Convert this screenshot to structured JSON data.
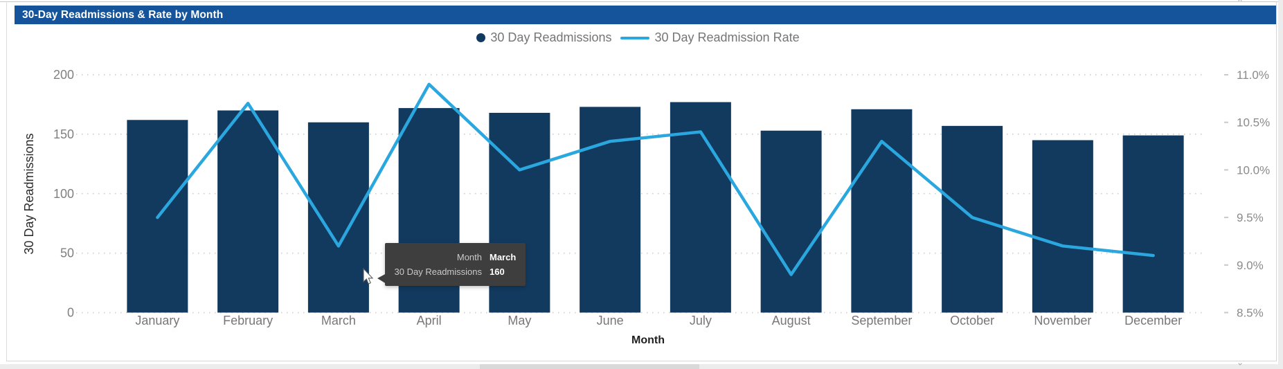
{
  "title_bar": {
    "title": "30-Day Readmissions & Rate by Month",
    "bg_color": "#15549A"
  },
  "chart_data": {
    "type": "combo-bar-line",
    "categories": [
      "January",
      "February",
      "March",
      "April",
      "May",
      "June",
      "July",
      "August",
      "September",
      "October",
      "November",
      "December"
    ],
    "series": [
      {
        "name": "30 Day Readmissions",
        "type": "bar",
        "axis": "left",
        "color": "#123A5F",
        "values": [
          162,
          170,
          160,
          172,
          168,
          173,
          177,
          153,
          171,
          157,
          145,
          149
        ]
      },
      {
        "name": "30 Day Readmission Rate",
        "type": "line",
        "axis": "right",
        "color": "#2BA7E0",
        "values": [
          9.5,
          10.7,
          9.2,
          10.9,
          10.0,
          10.3,
          10.4,
          8.9,
          10.3,
          9.5,
          9.2,
          9.1
        ]
      }
    ],
    "left_axis": {
      "title": "30 Day Readmissions",
      "min": 0,
      "max": 200,
      "ticks": [
        0,
        50,
        100,
        150,
        200
      ]
    },
    "right_axis": {
      "min": 8.5,
      "max": 11.0,
      "tick_labels": [
        "8.5%",
        "9.0%",
        "9.5%",
        "10.0%",
        "10.5%",
        "11.0%"
      ]
    },
    "x_axis": {
      "title": "Month"
    },
    "grid": "dotted-horizontal",
    "legend_position": "top-center"
  },
  "tooltip": {
    "rows": [
      {
        "label": "Month",
        "value": "March"
      },
      {
        "label": "30 Day Readmissions",
        "value": "160"
      }
    ]
  },
  "chrome": {
    "scroll_glyph": "⌃"
  }
}
